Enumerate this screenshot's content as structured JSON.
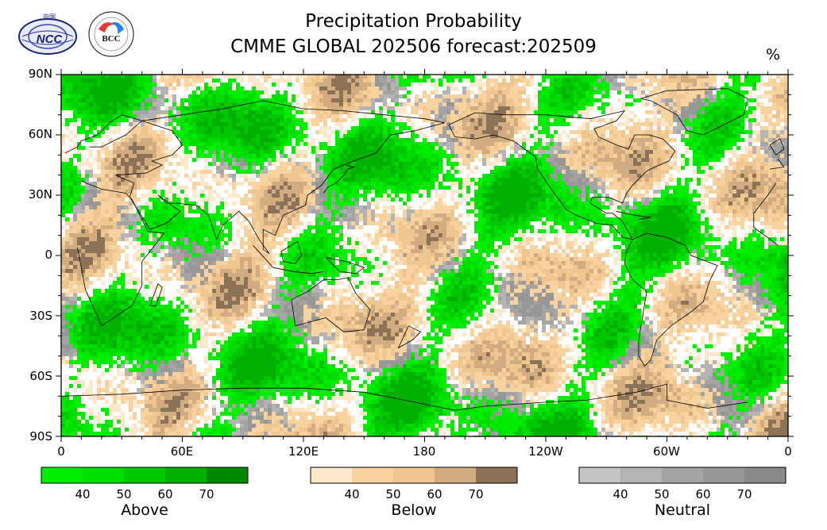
{
  "title": "Precipitation Probability",
  "subtitle": "CMME GLOBAL 202506 forecast:202509",
  "unit": "%",
  "logos": [
    {
      "name": "NCC",
      "text": "NCC"
    },
    {
      "name": "BCC",
      "text": "BCC"
    }
  ],
  "map": {
    "projection": "cylindrical",
    "lat_range": [
      -90,
      90
    ],
    "lon_range": [
      0,
      360
    ],
    "lat_labels": [
      "90N",
      "60N",
      "30N",
      "0",
      "30S",
      "60S",
      "90S"
    ],
    "lon_labels": [
      "0",
      "60E",
      "120E",
      "180",
      "120W",
      "60W",
      "0"
    ]
  },
  "colorbars": [
    {
      "name": "Above",
      "ticks": [
        "40",
        "50",
        "60",
        "70"
      ],
      "colors": [
        "#00ee00",
        "#00dd00",
        "#00c800",
        "#00b000",
        "#008800"
      ]
    },
    {
      "name": "Below",
      "ticks": [
        "40",
        "50",
        "60",
        "70"
      ],
      "colors": [
        "#fde8cc",
        "#f8d3a0",
        "#efc690",
        "#d0ac80",
        "#8c7358"
      ]
    },
    {
      "name": "Neutral",
      "ticks": [
        "40",
        "50",
        "60",
        "70"
      ],
      "colors": [
        "#c4c4c4",
        "#b4b4b4",
        "#a4a4a4",
        "#979797",
        "#8a8a8a"
      ]
    }
  ],
  "colors": {
    "above": "#00ee00",
    "below": "#f5d3a8",
    "neutral": "#b0b0b0",
    "background": "#ffffff"
  }
}
